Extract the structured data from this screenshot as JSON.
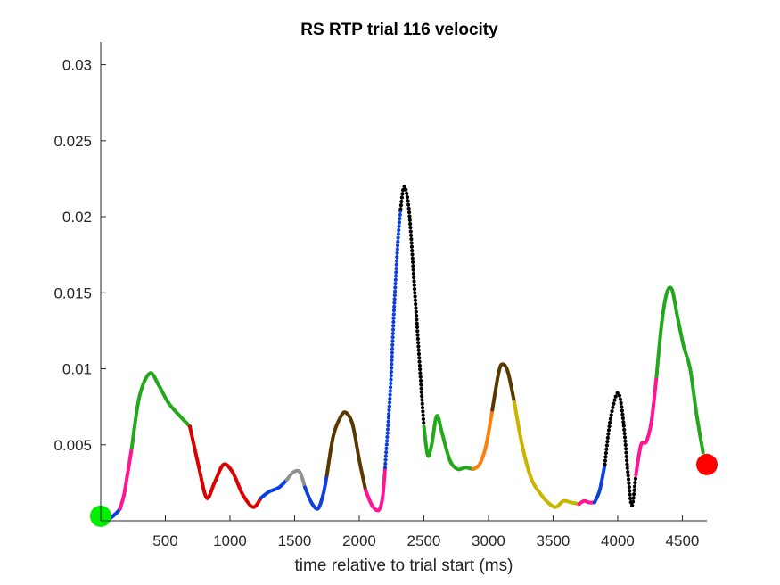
{
  "chart_data": {
    "type": "line",
    "title": "RS  RTP trial 116 velocity",
    "xlabel": "time relative to trial start (ms)",
    "ylabel": "",
    "xlim": [
      0,
      4690
    ],
    "ylim": [
      0,
      0.0315
    ],
    "xticks": [
      500,
      1000,
      1500,
      2000,
      2500,
      3000,
      3500,
      4000,
      4500
    ],
    "xtick_labels": [
      "500",
      "1000",
      "1500",
      "2000",
      "2500",
      "3000",
      "3500",
      "4000",
      "4500"
    ],
    "yticks": [
      0.005,
      0.01,
      0.015,
      0.02,
      0.025,
      0.03
    ],
    "ytick_labels": [
      "0.005",
      "0.01",
      "0.015",
      "0.02",
      "0.025",
      "0.03"
    ],
    "grid": false,
    "series": [
      {
        "color": "#0b3fe0",
        "style": "solid",
        "x": [
          0,
          60,
          120,
          150
        ],
        "y": [
          0.0,
          0.0001,
          0.0005,
          0.0008
        ]
      },
      {
        "color": "#ff1493",
        "style": "solid",
        "x": [
          150,
          180,
          210,
          240
        ],
        "y": [
          0.0008,
          0.0017,
          0.0032,
          0.0048
        ]
      },
      {
        "color": "#22a81a",
        "style": "solid",
        "x": [
          240,
          300,
          380,
          450,
          520,
          600,
          690
        ],
        "y": [
          0.0048,
          0.0082,
          0.0097,
          0.0089,
          0.0078,
          0.007,
          0.0062
        ]
      },
      {
        "color": "#dd0000",
        "style": "solid",
        "x": [
          690,
          760,
          820,
          880,
          950,
          1020,
          1100,
          1180,
          1240
        ],
        "y": [
          0.0062,
          0.0035,
          0.0015,
          0.0025,
          0.0037,
          0.0032,
          0.0017,
          0.0009,
          0.0015
        ]
      },
      {
        "color": "#0b3fe0",
        "style": "solid",
        "x": [
          1240,
          1300,
          1380,
          1440
        ],
        "y": [
          0.0015,
          0.0019,
          0.0022,
          0.0027
        ]
      },
      {
        "color": "#909090",
        "style": "solid",
        "x": [
          1440,
          1490,
          1540,
          1580
        ],
        "y": [
          0.0027,
          0.0032,
          0.0032,
          0.0022
        ]
      },
      {
        "color": "#0b3fe0",
        "style": "solid",
        "x": [
          1580,
          1630,
          1680,
          1720,
          1750
        ],
        "y": [
          0.0022,
          0.0012,
          0.0008,
          0.0017,
          0.003
        ]
      },
      {
        "color": "#5a3800",
        "style": "solid",
        "x": [
          1750,
          1800,
          1860,
          1900,
          1950,
          2000,
          2050
        ],
        "y": [
          0.003,
          0.0056,
          0.0069,
          0.0071,
          0.0063,
          0.004,
          0.002
        ]
      },
      {
        "color": "#ff1493",
        "style": "solid",
        "x": [
          2050,
          2100,
          2150,
          2180,
          2200
        ],
        "y": [
          0.002,
          0.001,
          0.0007,
          0.0015,
          0.0035
        ]
      },
      {
        "color": "#0b3fe0",
        "style": "dotted",
        "x": [
          2200,
          2240,
          2270,
          2300,
          2320
        ],
        "y": [
          0.0035,
          0.0085,
          0.014,
          0.0185,
          0.0205
        ]
      },
      {
        "color": "#000000",
        "style": "dotted",
        "x": [
          2320,
          2340,
          2360,
          2390,
          2430,
          2470,
          2500
        ],
        "y": [
          0.0205,
          0.0218,
          0.0218,
          0.02,
          0.015,
          0.01,
          0.0062
        ]
      },
      {
        "color": "#22a81a",
        "style": "solid",
        "x": [
          2500,
          2530,
          2560,
          2600,
          2640,
          2700,
          2760,
          2820,
          2880
        ],
        "y": [
          0.0062,
          0.0043,
          0.005,
          0.0069,
          0.0058,
          0.004,
          0.0034,
          0.0035,
          0.0034
        ]
      },
      {
        "color": "#ff7f0e",
        "style": "solid",
        "x": [
          2880,
          2930,
          2980,
          3030
        ],
        "y": [
          0.0034,
          0.0037,
          0.0049,
          0.0073
        ]
      },
      {
        "color": "#5a3800",
        "style": "solid",
        "x": [
          3030,
          3080,
          3110,
          3150,
          3200
        ],
        "y": [
          0.0073,
          0.0098,
          0.0103,
          0.0098,
          0.0078
        ]
      },
      {
        "color": "#c9b500",
        "style": "solid",
        "x": [
          3200,
          3260,
          3330,
          3400,
          3460,
          3520,
          3580,
          3640,
          3700
        ],
        "y": [
          0.0078,
          0.005,
          0.0028,
          0.0018,
          0.0012,
          0.0009,
          0.0013,
          0.0012,
          0.0011
        ]
      },
      {
        "color": "#ff1493",
        "style": "solid",
        "x": [
          3700,
          3740,
          3780,
          3820
        ],
        "y": [
          0.0011,
          0.0013,
          0.0012,
          0.0012
        ]
      },
      {
        "color": "#0b3fe0",
        "style": "solid",
        "x": [
          3820,
          3860,
          3900
        ],
        "y": [
          0.0012,
          0.002,
          0.0037
        ]
      },
      {
        "color": "#000000",
        "style": "dotted",
        "x": [
          3900,
          3940,
          3990,
          4020,
          4050,
          4080,
          4110,
          4140
        ],
        "y": [
          0.0037,
          0.0065,
          0.0083,
          0.008,
          0.006,
          0.003,
          0.001,
          0.003
        ]
      },
      {
        "color": "#ff1493",
        "style": "solid",
        "x": [
          4140,
          4180,
          4220,
          4260,
          4300
        ],
        "y": [
          0.003,
          0.005,
          0.0052,
          0.0065,
          0.0095
        ]
      },
      {
        "color": "#22a81a",
        "style": "solid",
        "x": [
          4300,
          4340,
          4380,
          4420,
          4460,
          4510,
          4560,
          4610,
          4660
        ],
        "y": [
          0.0095,
          0.013,
          0.015,
          0.0152,
          0.0135,
          0.0115,
          0.01,
          0.007,
          0.0045
        ]
      }
    ],
    "markers": [
      {
        "label": "start",
        "x": 0,
        "y": 0.0003,
        "color": "#00ee00"
      },
      {
        "label": "end",
        "x": 4690,
        "y": 0.0037,
        "color": "#ff0000"
      }
    ]
  }
}
